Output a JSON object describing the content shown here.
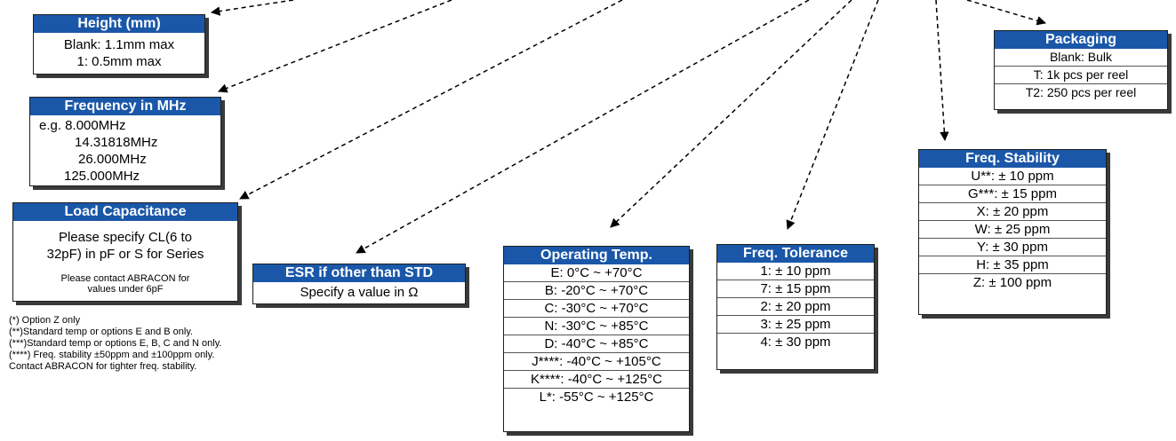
{
  "height": {
    "title": "Height (mm)",
    "lines": [
      "Blank: 1.1mm max",
      "1: 0.5mm max"
    ]
  },
  "frequency": {
    "title": "Frequency in MHz",
    "lines": [
      "e.g. 8.000MHz",
      "14.31818MHz",
      "26.000MHz",
      "125.000MHz"
    ]
  },
  "load_cap": {
    "title": "Load Capacitance",
    "lines": [
      "Please specify CL(6 to",
      "32pF) in pF or S for Series"
    ],
    "small": [
      "Please contact ABRACON for",
      "values under 6pF"
    ]
  },
  "esr": {
    "title": "ESR if other than STD",
    "line": "Specify a value in Ω"
  },
  "op_temp": {
    "title": "Operating Temp.",
    "rows": [
      "E: 0°C ~ +70°C",
      "B: -20°C ~ +70°C",
      "C: -30°C ~ +70°C",
      "N: -30°C ~ +85°C",
      "D: -40°C ~ +85°C",
      "J****: -40°C ~ +105°C",
      "K****: -40°C ~ +125°C",
      "L*: -55°C ~ +125°C"
    ]
  },
  "tolerance": {
    "title": "Freq. Tolerance",
    "rows": [
      "1: ± 10 ppm",
      "7: ± 15 ppm",
      "2: ± 20 ppm",
      "3: ± 25 ppm",
      "4: ± 30 ppm"
    ]
  },
  "stability": {
    "title": "Freq. Stability",
    "rows": [
      "U**: ± 10 ppm",
      "G***: ± 15 ppm",
      "X: ± 20 ppm",
      "W: ± 25 ppm",
      "Y: ± 30 ppm",
      "H: ± 35 ppm",
      "Z: ± 100 ppm"
    ]
  },
  "packaging": {
    "title": "Packaging",
    "rows": [
      "Blank: Bulk",
      "T:  1k pcs per reel",
      "T2:  250 pcs per reel"
    ]
  },
  "notes": [
    "(*) Option Z only",
    "(**)Standard temp or options E and B only.",
    "(***)Standard temp or options E,  B, C and N only.",
    "(****) Freq. stability ±50ppm and ±100ppm only.",
    "Contact ABRACON for tighter freq. stability."
  ],
  "colors": {
    "header": "#1a57a8",
    "arrow": "#000000"
  }
}
